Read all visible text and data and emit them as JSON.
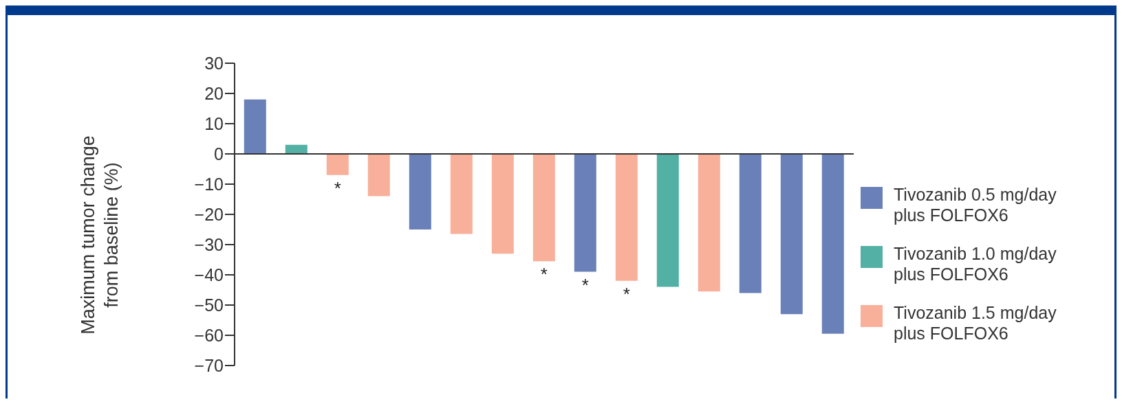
{
  "chart_data": {
    "type": "bar",
    "ylabel": "Maximum tumor change from baseline (%)",
    "categories": [
      null,
      null,
      null,
      null,
      null,
      null,
      null,
      null,
      null,
      null,
      null,
      null,
      null,
      null,
      null
    ],
    "stacked": true,
    "legend": "right",
    "series": [
      {
        "name": "Tivozanib 0.5 mg/day plus FOLFOX6",
        "color": "#6a80b8",
        "values": [
          18,
          null,
          null,
          null,
          -25,
          null,
          null,
          null,
          -39,
          null,
          null,
          null,
          -46,
          -53,
          -59.5
        ],
        "value_labels": [
          null,
          null,
          null,
          null,
          null,
          null,
          null,
          null,
          "*",
          null,
          null,
          null,
          null,
          null,
          null
        ]
      },
      {
        "name": "Tivozanib 1.0 mg/day plus FOLFOX6",
        "color": "#52b0a4",
        "values": [
          null,
          3,
          null,
          null,
          null,
          null,
          null,
          null,
          null,
          null,
          -44,
          null,
          null,
          null,
          null
        ]
      },
      {
        "name": "Tivozanib 1.5 mg/day plus FOLFOX6",
        "color": "#f8b09a",
        "values": [
          null,
          null,
          -7,
          -14,
          null,
          -26.5,
          -33,
          -35.5,
          null,
          -42,
          null,
          -45.5,
          null,
          null,
          null
        ],
        "value_labels": [
          null,
          null,
          "*",
          null,
          null,
          null,
          null,
          "*",
          null,
          "*",
          null,
          null,
          null,
          null,
          null
        ]
      }
    ],
    "ylim": [
      -70,
      30
    ],
    "yticks": [
      -70,
      -60,
      -50,
      -40,
      -30,
      -20,
      -10,
      0,
      10,
      20,
      30
    ]
  }
}
